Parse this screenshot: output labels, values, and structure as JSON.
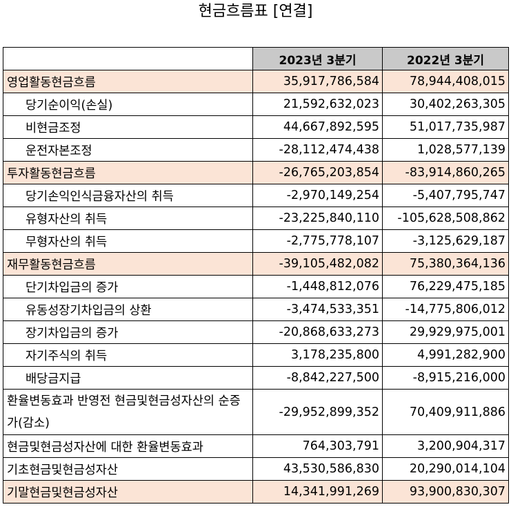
{
  "title": "현금흐름표 [연결]",
  "headers": [
    "",
    "2023년 3분기",
    "2022년 3분기"
  ],
  "rows": [
    {
      "label": "영업활동현금흐름",
      "v1": "35,917,786,584",
      "v2": "78,944,408,015",
      "highlight": true,
      "indent": false
    },
    {
      "label": "당기순이익(손실)",
      "v1": "21,592,632,023",
      "v2": "30,402,263,305",
      "highlight": false,
      "indent": true
    },
    {
      "label": "비현금조정",
      "v1": "44,667,892,595",
      "v2": "51,017,735,987",
      "highlight": false,
      "indent": true
    },
    {
      "label": "운전자본조정",
      "v1": "-28,112,474,438",
      "v2": "1,028,577,139",
      "highlight": false,
      "indent": true
    },
    {
      "label": "투자활동현금흐름",
      "v1": "-26,765,203,854",
      "v2": "-83,914,860,265",
      "highlight": true,
      "indent": false
    },
    {
      "label": "당기손익인식금융자산의 취득",
      "v1": "-2,970,149,254",
      "v2": "-5,407,795,747",
      "highlight": false,
      "indent": true
    },
    {
      "label": "유형자산의 취득",
      "v1": "-23,225,840,110",
      "v2": "-105,628,508,862",
      "highlight": false,
      "indent": true
    },
    {
      "label": "무형자산의 취득",
      "v1": "-2,775,778,107",
      "v2": "-3,125,629,187",
      "highlight": false,
      "indent": true
    },
    {
      "label": "재무활동현금흐름",
      "v1": "-39,105,482,082",
      "v2": "75,380,364,136",
      "highlight": true,
      "indent": false
    },
    {
      "label": "단기차입금의 증가",
      "v1": "-1,448,812,076",
      "v2": "76,229,475,185",
      "highlight": false,
      "indent": true
    },
    {
      "label": "유동성장기차입금의 상환",
      "v1": "-3,474,533,351",
      "v2": "-14,775,806,012",
      "highlight": false,
      "indent": true
    },
    {
      "label": "장기차입금의 증가",
      "v1": "-20,868,633,273",
      "v2": "29,929,975,001",
      "highlight": false,
      "indent": true
    },
    {
      "label": "자기주식의 취득",
      "v1": "3,178,235,800",
      "v2": "4,991,282,900",
      "highlight": false,
      "indent": true
    },
    {
      "label": "배당금지급",
      "v1": "-8,842,227,500",
      "v2": "-8,915,216,000",
      "highlight": false,
      "indent": true
    },
    {
      "label": "환율변동효과 반영전 현금및현금성자산의 순증가(감소)",
      "v1": "-29,952,899,352",
      "v2": "70,409,911,886",
      "highlight": false,
      "indent": false,
      "wrap": true
    },
    {
      "label": "현금및현금성자산에 대한 환율변동효과",
      "v1": "764,303,791",
      "v2": "3,200,904,317",
      "highlight": false,
      "indent": false
    },
    {
      "label": "기초현금및현금성자산",
      "v1": "43,530,586,830",
      "v2": "20,290,014,104",
      "highlight": false,
      "indent": false
    },
    {
      "label": "기말현금및현금성자산",
      "v1": "14,341,991,269",
      "v2": "93,900,830,307",
      "highlight": true,
      "indent": false
    }
  ],
  "colors": {
    "header_bg": "#c9c9c9",
    "highlight_bg": "#fbe4d6"
  }
}
